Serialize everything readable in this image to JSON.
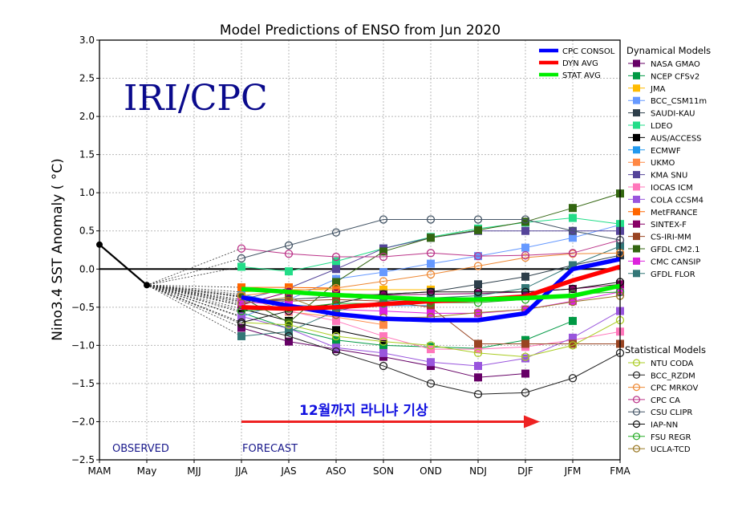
{
  "chart_data": {
    "type": "line",
    "title": "Model Predictions of ENSO from Jun 2020",
    "xlabel": "",
    "ylabel": "Nino3.4 SST Anomaly ( °C)",
    "ylim": [
      -2.5,
      3.0
    ],
    "yticks": [
      "3.0",
      "2.5",
      "2.0",
      "1.5",
      "1.0",
      "0.5",
      "0.0",
      "−0.5",
      "−1.0",
      "−1.5",
      "−2.0",
      "−2.5"
    ],
    "ytick_values": [
      3.0,
      2.5,
      2.0,
      1.5,
      1.0,
      0.5,
      0.0,
      -0.5,
      -1.0,
      -1.5,
      -2.0,
      -2.5
    ],
    "categories": [
      "MAM",
      "May",
      "MJJ",
      "JJA",
      "JAS",
      "ASO",
      "SON",
      "OND",
      "NDJ",
      "DJF",
      "JFM",
      "FMA"
    ],
    "grid": true,
    "watermark": "IRI/CPC",
    "phase_labels": {
      "observed": "OBSERVED",
      "forecast": "FORECAST"
    },
    "annotation": {
      "text": "12월까지 라니냐 기상",
      "arrow_from": "JJA",
      "arrow_to": "DJF",
      "arrow_value": -2.0,
      "arrow_color": "#ee2222",
      "text_color": "#1010e0"
    },
    "observed": {
      "name": "Observed",
      "color": "#000000",
      "x": [
        "MAM",
        "May"
      ],
      "values": [
        0.32,
        -0.21
      ]
    },
    "averages": [
      {
        "name": "CPC CONSOL",
        "color": "#0000ff",
        "values": [
          null,
          null,
          null,
          -0.37,
          -0.48,
          -0.59,
          -0.65,
          -0.67,
          -0.67,
          -0.58,
          0.0,
          0.13
        ]
      },
      {
        "name": "DYN AVG",
        "color": "#ff0000",
        "values": [
          null,
          null,
          null,
          -0.5,
          -0.52,
          -0.5,
          -0.46,
          -0.42,
          -0.4,
          -0.36,
          -0.15,
          0.03
        ]
      },
      {
        "name": "STAT AVG",
        "color": "#00ee00",
        "values": [
          null,
          null,
          null,
          -0.26,
          -0.3,
          -0.34,
          -0.37,
          -0.4,
          -0.4,
          -0.38,
          -0.35,
          -0.22
        ]
      }
    ],
    "legend_averages_position": "top-right inside plot",
    "dynamical_header": "Dynamical Models",
    "statistical_header": "Statistical Models",
    "dynamical_models": [
      {
        "name": "NASA GMAO",
        "color": "#660066",
        "values": [
          null,
          null,
          null,
          -0.77,
          -0.95,
          -1.05,
          -1.15,
          -1.27,
          -1.42,
          -1.37,
          null,
          null
        ]
      },
      {
        "name": "NCEP CFSv2",
        "color": "#009944",
        "values": [
          null,
          null,
          null,
          -0.57,
          -0.78,
          -0.93,
          -1.0,
          -1.02,
          -1.04,
          -0.93,
          -0.68,
          null
        ]
      },
      {
        "name": "JMA",
        "color": "#ffbb00",
        "values": [
          null,
          null,
          null,
          -0.3,
          -0.27,
          -0.27,
          -0.27,
          -0.27,
          null,
          null,
          null,
          null
        ]
      },
      {
        "name": "BCC_CSM11m",
        "color": "#6699ff",
        "values": [
          null,
          null,
          null,
          -0.63,
          -0.4,
          -0.13,
          -0.04,
          0.07,
          0.17,
          0.28,
          0.41,
          0.58
        ]
      },
      {
        "name": "SAUDI-KAU",
        "color": "#2d3e4a",
        "values": [
          null,
          null,
          null,
          -0.42,
          -0.4,
          -0.36,
          -0.33,
          -0.3,
          -0.2,
          -0.1,
          0.05,
          0.18
        ]
      },
      {
        "name": "LDEO",
        "color": "#22dd88",
        "values": [
          null,
          null,
          null,
          0.03,
          -0.03,
          0.1,
          0.27,
          0.42,
          0.53,
          0.61,
          0.67,
          0.59
        ]
      },
      {
        "name": "AUS/ACCESS",
        "color": "#000000",
        "values": [
          null,
          null,
          null,
          -0.52,
          -0.68,
          -0.8,
          -0.93,
          null,
          null,
          null,
          null,
          null
        ]
      },
      {
        "name": "ECMWF",
        "color": "#2299ee",
        "values": [
          null,
          null,
          null,
          -0.33,
          -0.47,
          -0.5,
          -0.48,
          -0.48,
          null,
          null,
          null,
          null
        ]
      },
      {
        "name": "UKMO",
        "color": "#ff8844",
        "values": [
          null,
          null,
          null,
          -0.36,
          -0.56,
          -0.63,
          -0.73,
          null,
          null,
          null,
          null,
          null
        ]
      },
      {
        "name": "KMA SNU",
        "color": "#554499",
        "values": [
          null,
          null,
          null,
          -0.4,
          -0.25,
          0.0,
          0.27,
          0.41,
          0.5,
          0.5,
          0.5,
          0.5
        ]
      },
      {
        "name": "IOCAS ICM",
        "color": "#ff77bb",
        "values": [
          null,
          null,
          null,
          -0.48,
          -0.55,
          -0.68,
          -0.88,
          -1.05,
          -1.05,
          -1.02,
          -0.93,
          -0.82
        ]
      },
      {
        "name": "COLA CCSM4",
        "color": "#9955dd",
        "values": [
          null,
          null,
          null,
          -0.62,
          -0.78,
          -1.03,
          -1.1,
          -1.22,
          -1.27,
          -1.17,
          -0.9,
          -0.55
        ]
      },
      {
        "name": "MetFRANCE",
        "color": "#ff6600",
        "values": [
          null,
          null,
          null,
          -0.24,
          -0.24,
          -0.25,
          null,
          null,
          null,
          null,
          null,
          null
        ]
      },
      {
        "name": "SINTEX-F",
        "color": "#880066",
        "values": [
          null,
          null,
          null,
          -0.47,
          -0.3,
          -0.32,
          -0.34,
          -0.33,
          -0.32,
          -0.3,
          -0.26,
          -0.2
        ]
      },
      {
        "name": "CS-IRI-MM",
        "color": "#994422",
        "values": [
          null,
          null,
          null,
          -0.4,
          -0.42,
          -0.4,
          -0.42,
          -0.5,
          -0.98,
          -0.98,
          -0.98,
          -0.98
        ]
      },
      {
        "name": "GFDL CM2.1",
        "color": "#336611",
        "values": [
          null,
          null,
          null,
          -0.37,
          -0.7,
          -0.17,
          0.23,
          0.41,
          0.51,
          0.62,
          0.8,
          0.99
        ]
      },
      {
        "name": "CMC CANSIP",
        "color": "#dd22dd",
        "values": [
          null,
          null,
          null,
          -0.43,
          -0.47,
          -0.53,
          -0.55,
          -0.58,
          -0.58,
          -0.53,
          -0.42,
          -0.3
        ]
      },
      {
        "name": "GFDL FLOR",
        "color": "#337777",
        "values": [
          null,
          null,
          null,
          -0.88,
          -0.82,
          -0.55,
          -0.42,
          -0.38,
          -0.35,
          -0.25,
          0.05,
          0.3
        ]
      }
    ],
    "statistical_models": [
      {
        "name": "NTU CODA",
        "color": "#aacc22",
        "values": [
          null,
          null,
          null,
          -0.7,
          -0.73,
          -0.88,
          -0.95,
          -1.0,
          -1.1,
          -1.15,
          -1.0,
          -0.67
        ]
      },
      {
        "name": "BCC_RZDM",
        "color": "#222222",
        "values": [
          null,
          null,
          null,
          -0.72,
          -0.88,
          -1.08,
          -1.27,
          -1.5,
          -1.64,
          -1.62,
          -1.43,
          -1.1
        ]
      },
      {
        "name": "CPC MRKOV",
        "color": "#ee8833",
        "values": [
          null,
          null,
          null,
          -0.35,
          -0.28,
          -0.25,
          -0.16,
          -0.07,
          0.04,
          0.15,
          0.2,
          0.21
        ]
      },
      {
        "name": "CPC CA",
        "color": "#bb3388",
        "values": [
          null,
          null,
          null,
          0.27,
          0.2,
          0.16,
          0.16,
          0.21,
          0.17,
          0.18,
          0.21,
          0.38
        ]
      },
      {
        "name": "CSU CLIPR",
        "color": "#445566",
        "values": [
          null,
          null,
          null,
          0.14,
          0.31,
          0.48,
          0.65,
          0.65,
          0.65,
          0.65,
          0.5,
          0.38
        ]
      },
      {
        "name": "IAP-NN",
        "color": "#111111",
        "values": [
          null,
          null,
          null,
          -0.7,
          -0.55,
          -0.45,
          -0.33,
          -0.3,
          -0.3,
          -0.3,
          -0.26,
          -0.17
        ]
      },
      {
        "name": "FSU REGR",
        "color": "#22aa22",
        "values": [
          null,
          null,
          null,
          -0.55,
          -0.52,
          -0.45,
          -0.45,
          -0.44,
          -0.44,
          -0.4,
          -0.33,
          -0.3
        ]
      },
      {
        "name": "UCLA-TCD",
        "color": "#997722",
        "values": [
          null,
          null,
          null,
          -0.45,
          -0.37,
          -0.6,
          -0.64,
          -0.63,
          -0.57,
          -0.53,
          -0.43,
          -0.35
        ]
      }
    ]
  }
}
